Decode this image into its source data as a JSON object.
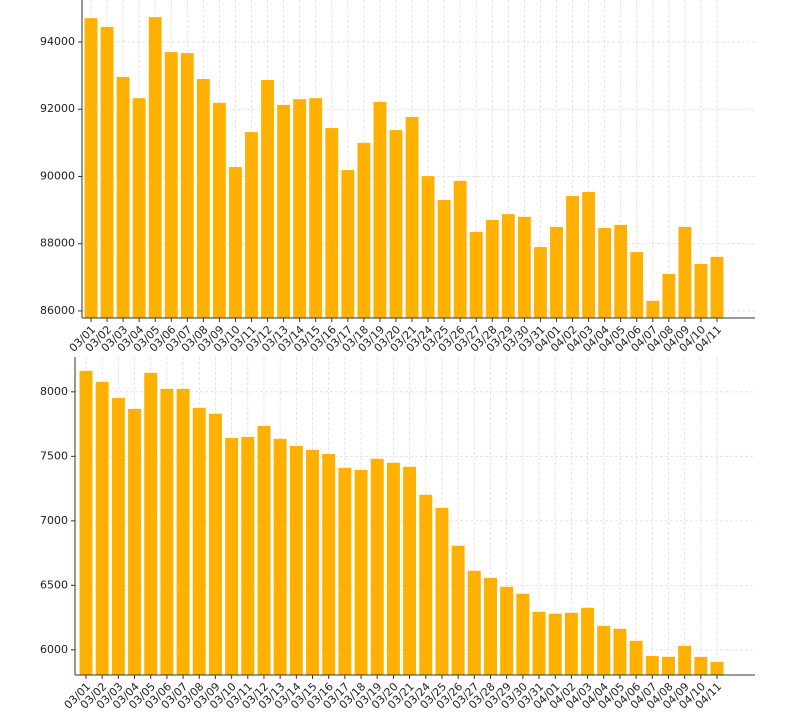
{
  "chart_data": [
    {
      "type": "bar",
      "color": "#FFB000",
      "grid": true,
      "categories": [
        "03/01",
        "03/02",
        "03/03",
        "03/04",
        "03/05",
        "03/06",
        "03/07",
        "03/08",
        "03/09",
        "03/10",
        "03/11",
        "03/12",
        "03/13",
        "03/14",
        "03/15",
        "03/16",
        "03/17",
        "03/18",
        "03/19",
        "03/20",
        "03/21",
        "03/24",
        "03/25",
        "03/26",
        "03/27",
        "03/28",
        "03/29",
        "03/30",
        "03/31",
        "04/01",
        "04/02",
        "04/03",
        "04/04",
        "04/05",
        "04/06",
        "04/07",
        "04/08",
        "04/09",
        "04/10",
        "04/11"
      ],
      "values": [
        94710,
        94450,
        92960,
        92330,
        94740,
        93700,
        93670,
        92900,
        92190,
        90280,
        91320,
        92870,
        92130,
        92300,
        92330,
        91440,
        90190,
        91000,
        92220,
        91380,
        91770,
        90010,
        89300,
        89870,
        88350,
        88710,
        88880,
        88800,
        87900,
        88500,
        89420,
        89540,
        88470,
        88560,
        87750,
        86300,
        87100,
        88500,
        87400,
        87610
      ],
      "ylim": [
        85790,
        95250
      ],
      "yticks": [
        86000,
        88000,
        90000,
        92000,
        94000
      ]
    },
    {
      "type": "bar",
      "color": "#FFB000",
      "grid": true,
      "categories": [
        "03/01",
        "03/02",
        "03/03",
        "03/04",
        "03/05",
        "03/06",
        "03/07",
        "03/08",
        "03/09",
        "03/10",
        "03/11",
        "03/12",
        "03/13",
        "03/14",
        "03/15",
        "03/16",
        "03/17",
        "03/18",
        "03/19",
        "03/20",
        "03/21",
        "03/24",
        "03/25",
        "03/26",
        "03/27",
        "03/28",
        "03/29",
        "03/30",
        "03/31",
        "04/01",
        "04/02",
        "04/03",
        "04/04",
        "04/05",
        "04/06",
        "04/07",
        "04/08",
        "04/09",
        "04/10",
        "04/11"
      ],
      "values": [
        8163,
        8078,
        7953,
        7868,
        8147,
        8023,
        8023,
        7876,
        7830,
        7643,
        7651,
        7736,
        7636,
        7581,
        7550,
        7519,
        7411,
        7395,
        7481,
        7450,
        7419,
        7202,
        7101,
        6807,
        6613,
        6558,
        6489,
        6435,
        6295,
        6280,
        6287,
        6326,
        6186,
        6163,
        6070,
        5953,
        5946,
        6031,
        5946,
        5907
      ],
      "ylim": [
        5805,
        8270
      ],
      "yticks": [
        6000,
        6500,
        7000,
        7500,
        8000
      ]
    }
  ]
}
